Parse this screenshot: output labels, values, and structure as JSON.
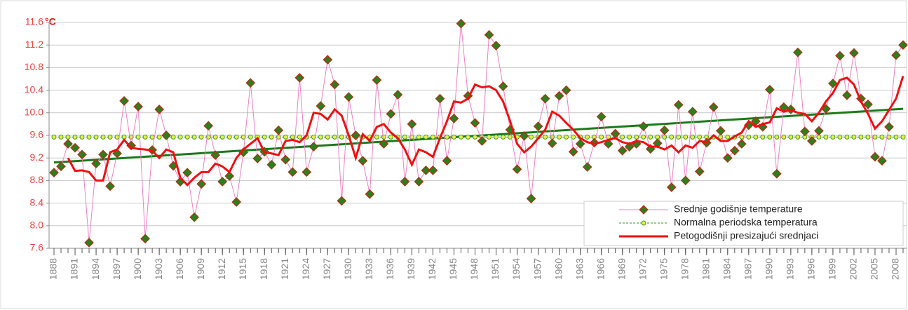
{
  "chart_data": {
    "type": "line",
    "unit": "°C",
    "x": [
      1888,
      1889,
      1890,
      1891,
      1892,
      1893,
      1894,
      1895,
      1896,
      1897,
      1898,
      1899,
      1900,
      1901,
      1902,
      1903,
      1904,
      1905,
      1906,
      1907,
      1908,
      1909,
      1910,
      1911,
      1912,
      1913,
      1914,
      1915,
      1916,
      1917,
      1918,
      1919,
      1920,
      1921,
      1922,
      1923,
      1924,
      1925,
      1926,
      1927,
      1928,
      1929,
      1930,
      1931,
      1932,
      1933,
      1934,
      1935,
      1936,
      1937,
      1938,
      1939,
      1940,
      1941,
      1942,
      1943,
      1944,
      1945,
      1946,
      1947,
      1948,
      1949,
      1950,
      1951,
      1952,
      1953,
      1954,
      1955,
      1956,
      1957,
      1958,
      1959,
      1960,
      1961,
      1962,
      1963,
      1964,
      1965,
      1966,
      1967,
      1968,
      1969,
      1970,
      1971,
      1972,
      1973,
      1974,
      1975,
      1976,
      1977,
      1978,
      1979,
      1980,
      1981,
      1982,
      1983,
      1984,
      1985,
      1986,
      1987,
      1988,
      1989,
      1990,
      1991,
      1992,
      1993,
      1994,
      1995,
      1996,
      1997,
      1998,
      1999,
      2000,
      2001,
      2002,
      2003,
      2004,
      2005,
      2006,
      2007,
      2008,
      2009
    ],
    "series": [
      {
        "name": "Srednje godišnje temperature",
        "color": "#f080c0",
        "marker": "diamond",
        "values": [
          8.94,
          9.05,
          9.45,
          9.38,
          9.26,
          7.7,
          9.1,
          9.26,
          8.7,
          9.28,
          10.21,
          9.42,
          10.11,
          7.77,
          9.34,
          10.06,
          9.6,
          9.06,
          8.78,
          8.94,
          8.15,
          8.74,
          9.77,
          9.25,
          8.78,
          8.88,
          8.42,
          9.3,
          10.53,
          9.19,
          9.31,
          9.08,
          9.69,
          9.17,
          8.95,
          10.62,
          8.95,
          9.4,
          10.12,
          10.94,
          10.5,
          8.44,
          10.28,
          9.6,
          9.15,
          8.56,
          10.58,
          9.45,
          9.98,
          10.32,
          8.78,
          9.8,
          8.78,
          8.98,
          8.98,
          10.25,
          9.15,
          9.9,
          11.58,
          10.3,
          9.82,
          9.5,
          11.38,
          11.19,
          10.47,
          9.7,
          9.0,
          9.59,
          8.48,
          9.76,
          10.25,
          9.46,
          10.3,
          10.4,
          9.31,
          9.45,
          9.04,
          9.47,
          9.93,
          9.45,
          9.63,
          9.33,
          9.4,
          9.45,
          9.76,
          9.36,
          9.46,
          9.69,
          8.68,
          10.14,
          8.8,
          10.02,
          8.96,
          9.47,
          10.1,
          9.68,
          9.2,
          9.33,
          9.45,
          9.78,
          9.85,
          9.75,
          10.41,
          8.92,
          10.1,
          10.06,
          11.07,
          9.67,
          9.5,
          9.68,
          10.07,
          10.52,
          11.01,
          10.31,
          11.06,
          10.25,
          10.15,
          9.22,
          9.15,
          9.75,
          11.02,
          11.2
        ]
      },
      {
        "name": "Normalna periodska temperatura",
        "color": "#2a9a2a",
        "marker": "circle",
        "dashed": true,
        "values": [
          9.57,
          9.57,
          9.57,
          9.57,
          9.57,
          9.57,
          9.57,
          9.57,
          9.57,
          9.57,
          9.57,
          9.57,
          9.57,
          9.57,
          9.57,
          9.57,
          9.57,
          9.57,
          9.57,
          9.57,
          9.57,
          9.57,
          9.57,
          9.57,
          9.57,
          9.57,
          9.57,
          9.57,
          9.57,
          9.57,
          9.57,
          9.57,
          9.57,
          9.57,
          9.57,
          9.57,
          9.57,
          9.57,
          9.57,
          9.57,
          9.57,
          9.57,
          9.57,
          9.57,
          9.57,
          9.57,
          9.57,
          9.57,
          9.57,
          9.57,
          9.57,
          9.57,
          9.57,
          9.57,
          9.57,
          9.57,
          9.57,
          9.57,
          9.57,
          9.57,
          9.57,
          9.57,
          9.57,
          9.57,
          9.57,
          9.57,
          9.57,
          9.57,
          9.57,
          9.57,
          9.57,
          9.57,
          9.57,
          9.57,
          9.57,
          9.57,
          9.57,
          9.57,
          9.57,
          9.57,
          9.57,
          9.57,
          9.57,
          9.57,
          9.57,
          9.57,
          9.57,
          9.57,
          9.57,
          9.57,
          9.57,
          9.57,
          9.57,
          9.57,
          9.57,
          9.57,
          9.57,
          9.57,
          9.57,
          9.57,
          9.57,
          9.57,
          9.57,
          9.57,
          9.57,
          9.57,
          9.57,
          9.57,
          9.57,
          9.57,
          9.57,
          9.57,
          9.57,
          9.57,
          9.57,
          9.57,
          9.57,
          9.57,
          9.57,
          9.57,
          9.57,
          9.57
        ]
      },
      {
        "name": "Petogodišnji presizajući srednjaci",
        "color": "#ee1111",
        "marker": "none",
        "width": 3,
        "values": [
          null,
          null,
          9.2,
          8.97,
          8.98,
          8.95,
          8.8,
          8.8,
          9.3,
          9.35,
          9.52,
          9.38,
          9.36,
          9.35,
          9.33,
          9.2,
          9.35,
          9.3,
          8.85,
          8.72,
          8.85,
          8.95,
          8.95,
          9.1,
          9.05,
          8.95,
          9.2,
          9.35,
          9.45,
          9.55,
          9.3,
          9.28,
          9.25,
          9.5,
          9.52,
          9.48,
          9.6,
          10.0,
          9.98,
          9.88,
          10.06,
          9.95,
          9.6,
          9.2,
          9.62,
          9.5,
          9.75,
          9.8,
          9.65,
          9.55,
          9.35,
          9.08,
          9.35,
          9.3,
          9.22,
          9.55,
          9.85,
          10.2,
          10.18,
          10.25,
          10.5,
          10.45,
          10.47,
          10.4,
          10.2,
          9.85,
          9.45,
          9.3,
          9.4,
          9.55,
          9.7,
          10.02,
          9.95,
          9.82,
          9.7,
          9.55,
          9.48,
          9.45,
          9.48,
          9.52,
          9.55,
          9.48,
          9.45,
          9.5,
          9.48,
          9.4,
          9.4,
          9.35,
          9.42,
          9.3,
          9.42,
          9.38,
          9.5,
          9.48,
          9.6,
          9.5,
          9.5,
          9.58,
          9.65,
          9.85,
          9.75,
          9.8,
          9.83,
          10.08,
          10.02,
          10.05,
          10.0,
          9.98,
          9.85,
          10.0,
          10.2,
          10.35,
          10.58,
          10.62,
          10.5,
          10.2,
          9.98,
          9.72,
          9.85,
          10.05,
          10.25,
          10.65
        ]
      }
    ],
    "trendline": {
      "x": [
        1888,
        2009
      ],
      "values": [
        9.12,
        10.07
      ],
      "color": "#1a7a1a"
    },
    "xlim": [
      1887.3,
      2009.5
    ],
    "xticks": [
      1888,
      1891,
      1894,
      1897,
      1900,
      1903,
      1906,
      1909,
      1912,
      1915,
      1918,
      1921,
      1924,
      1927,
      1930,
      1933,
      1936,
      1939,
      1942,
      1945,
      1948,
      1951,
      1954,
      1957,
      1960,
      1963,
      1966,
      1969,
      1972,
      1975,
      1978,
      1981,
      1984,
      1987,
      1990,
      1993,
      1996,
      1999,
      2002,
      2005,
      2008
    ],
    "ylim": [
      7.6,
      11.6
    ],
    "yticks": [
      7.6,
      {
        "value": 8,
        "label": "8.0"
      },
      8.4,
      8.8,
      9.2,
      9.6,
      {
        "value": 10,
        "label": "10.0"
      },
      10.4,
      10.8,
      11.2,
      11.6
    ],
    "grid": true,
    "legend": "lower-right"
  }
}
